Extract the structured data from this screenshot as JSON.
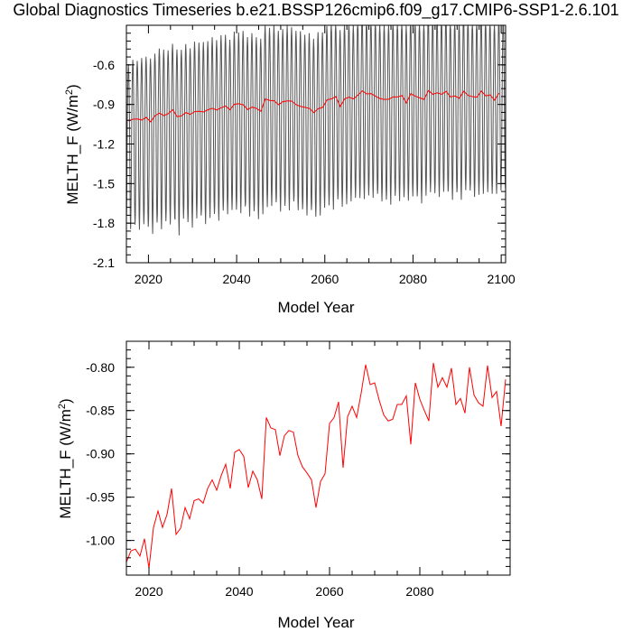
{
  "figure": {
    "title": "Global Diagnostics Timeseries b.e21.BSSP126cmip6.f09_g17.CMIP6-SSP1-2.6.101"
  },
  "chart_data": [
    {
      "type": "line",
      "xlabel": "Model Year",
      "ylabel_main": "MELTH_F (W/m",
      "ylabel_sup": "2",
      "ylabel_tail": ")",
      "xlim": [
        2015,
        2101
      ],
      "ylim": [
        -2.1,
        -0.3
      ],
      "x_ticks": [
        2020,
        2040,
        2060,
        2080,
        2100
      ],
      "x_tick_labels": [
        "2020",
        "2040",
        "2060",
        "2080",
        "2100"
      ],
      "y_ticks": [
        -2.1,
        -1.8,
        -1.5,
        -1.2,
        -0.9,
        -0.6
      ],
      "y_tick_labels": [
        "-2.1",
        "-1.8",
        "-1.5",
        "-1.2",
        "-0.9",
        "-0.6"
      ],
      "grid": false,
      "legend": "none",
      "monthly_series": {
        "color": "#555555",
        "description_values": "monthly values oscillating seasonally around the annual mean",
        "start_year": 2015,
        "months_per_year": 12,
        "seasonal_peak_offset": [
          0.43,
          0.45,
          0.44,
          0.47,
          0.46,
          0.48,
          0.47,
          0.49,
          0.5,
          0.48,
          0.5,
          0.51,
          0.5,
          0.52,
          0.5,
          0.53,
          0.52,
          0.53,
          0.52,
          0.54,
          0.53,
          0.55,
          0.54,
          0.53,
          0.55,
          0.54,
          0.56,
          0.55,
          0.56,
          0.54,
          0.55,
          0.56,
          0.55,
          0.57,
          0.56,
          0.55,
          0.57,
          0.56,
          0.56,
          0.57,
          0.55,
          0.57,
          0.56,
          0.58,
          0.57,
          0.56,
          0.58,
          0.57,
          0.58,
          0.57,
          0.58,
          0.56,
          0.58,
          0.57,
          0.58,
          0.57,
          0.59,
          0.57,
          0.58,
          0.57,
          0.59,
          0.58,
          0.57,
          0.59,
          0.58,
          0.59,
          0.58,
          0.59,
          0.57,
          0.59,
          0.58,
          0.59,
          0.58,
          0.59,
          0.58,
          0.59,
          0.58,
          0.59,
          0.58,
          0.59,
          0.58,
          0.59,
          0.58,
          0.59,
          0.58,
          0.6
        ],
        "seasonal_trough_offset": [
          -0.82,
          -0.8,
          -0.84,
          -0.79,
          -0.83,
          -0.85,
          -0.81,
          -0.88,
          -0.8,
          -0.84,
          -0.82,
          -0.9,
          -0.78,
          -0.83,
          -0.86,
          -0.81,
          -0.79,
          -0.85,
          -0.82,
          -0.8,
          -0.84,
          -0.78,
          -0.82,
          -0.76,
          -0.8,
          -0.83,
          -0.77,
          -0.81,
          -0.79,
          -0.84,
          -0.78,
          -0.82,
          -0.8,
          -0.77,
          -0.81,
          -0.79,
          -0.83,
          -0.76,
          -0.8,
          -0.78,
          -0.82,
          -0.77,
          -0.79,
          -0.81,
          -0.76,
          -0.8,
          -0.84,
          -0.78,
          -0.76,
          -0.8,
          -0.79,
          -0.75,
          -0.78,
          -0.82,
          -0.77,
          -0.79,
          -0.74,
          -0.78,
          -0.76,
          -0.8,
          -0.75,
          -0.79,
          -0.77,
          -0.74,
          -0.78,
          -0.76,
          -0.8,
          -0.73,
          -0.77,
          -0.75,
          -0.79,
          -0.74,
          -0.76,
          -0.78,
          -0.73,
          -0.77,
          -0.75,
          -0.72,
          -0.76,
          -0.74,
          -0.78,
          -0.73,
          -0.75,
          -0.71,
          -0.74,
          -0.72
        ]
      },
      "annual_series": {
        "color": "#ff0000",
        "source": "same annual means as lower panel"
      }
    },
    {
      "type": "line",
      "xlabel": "Model Year",
      "ylabel_main": "MELTH_F (W/m",
      "ylabel_sup": "2",
      "ylabel_tail": ")",
      "xlim": [
        2015,
        2100
      ],
      "ylim": [
        -1.04,
        -0.77
      ],
      "x_ticks": [
        2020,
        2040,
        2060,
        2080
      ],
      "x_tick_labels": [
        "2020",
        "2040",
        "2060",
        "2080"
      ],
      "y_ticks": [
        -1.0,
        -0.95,
        -0.9,
        -0.85,
        -0.8
      ],
      "y_tick_labels": [
        "-1.00",
        "-0.95",
        "-0.90",
        "-0.85",
        "-0.80"
      ],
      "grid": false,
      "legend": "none",
      "series": [
        {
          "color": "#ff0000",
          "x": [
            2015,
            2016,
            2017,
            2018,
            2019,
            2020,
            2021,
            2022,
            2023,
            2024,
            2025,
            2026,
            2027,
            2028,
            2029,
            2030,
            2031,
            2032,
            2033,
            2034,
            2035,
            2036,
            2037,
            2038,
            2039,
            2040,
            2041,
            2042,
            2043,
            2044,
            2045,
            2046,
            2047,
            2048,
            2049,
            2050,
            2051,
            2052,
            2053,
            2054,
            2055,
            2056,
            2057,
            2058,
            2059,
            2060,
            2061,
            2062,
            2063,
            2064,
            2065,
            2066,
            2067,
            2068,
            2069,
            2070,
            2071,
            2072,
            2073,
            2074,
            2075,
            2076,
            2077,
            2078,
            2079,
            2080,
            2081,
            2082,
            2083,
            2084,
            2085,
            2086,
            2087,
            2088,
            2089,
            2090,
            2091,
            2092,
            2093,
            2094,
            2095,
            2096,
            2097,
            2098,
            2099
          ],
          "y": [
            -1.025,
            -1.012,
            -1.01,
            -1.018,
            -0.998,
            -1.032,
            -0.985,
            -0.966,
            -0.985,
            -0.97,
            -0.94,
            -0.993,
            -0.986,
            -0.962,
            -0.975,
            -0.954,
            -0.952,
            -0.957,
            -0.94,
            -0.93,
            -0.942,
            -0.925,
            -0.912,
            -0.94,
            -0.898,
            -0.895,
            -0.903,
            -0.939,
            -0.92,
            -0.93,
            -0.952,
            -0.858,
            -0.87,
            -0.872,
            -0.902,
            -0.879,
            -0.873,
            -0.875,
            -0.902,
            -0.915,
            -0.922,
            -0.93,
            -0.962,
            -0.932,
            -0.923,
            -0.865,
            -0.858,
            -0.84,
            -0.916,
            -0.857,
            -0.845,
            -0.858,
            -0.83,
            -0.797,
            -0.82,
            -0.818,
            -0.838,
            -0.855,
            -0.862,
            -0.86,
            -0.843,
            -0.843,
            -0.833,
            -0.889,
            -0.818,
            -0.837,
            -0.85,
            -0.862,
            -0.795,
            -0.823,
            -0.812,
            -0.823,
            -0.801,
            -0.843,
            -0.836,
            -0.853,
            -0.8,
            -0.832,
            -0.841,
            -0.845,
            -0.798,
            -0.835,
            -0.828,
            -0.868,
            -0.814
          ]
        }
      ]
    }
  ]
}
